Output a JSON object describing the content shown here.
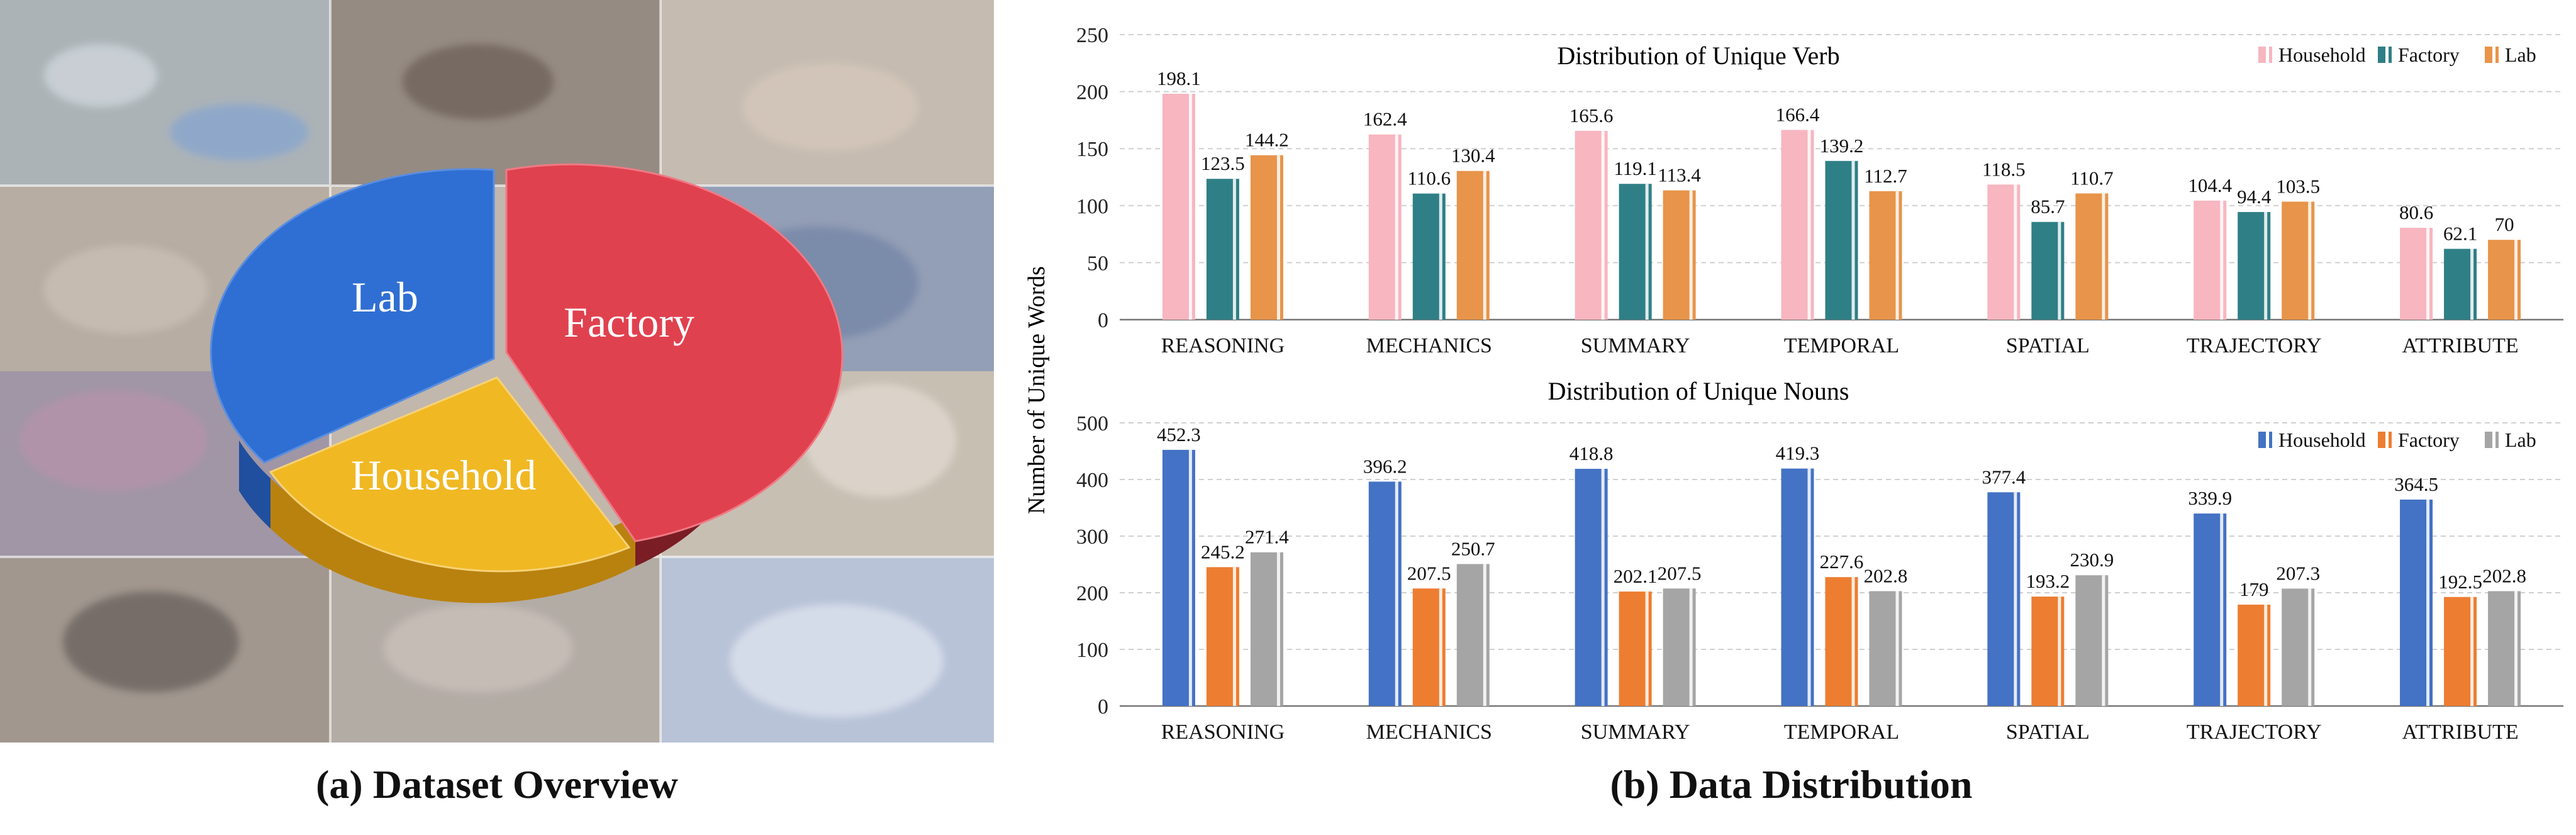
{
  "overview": {
    "caption": "(a) Dataset Overview",
    "slices": [
      {
        "label": "Lab",
        "color": "#2f6fd3"
      },
      {
        "label": "Factory",
        "color": "#e0414f"
      },
      {
        "label": "Household",
        "color": "#f0b823"
      }
    ]
  },
  "distribution": {
    "caption": "(b) Data Distribution",
    "ylabel": "Number of Unique Words"
  },
  "chart_data": [
    {
      "type": "bar",
      "title": "Distribution of Unique Verb",
      "categories": [
        "REASONING",
        "MECHANICS",
        "SUMMARY",
        "TEMPORAL",
        "SPATIAL",
        "TRAJECTORY",
        "ATTRIBUTE"
      ],
      "series": [
        {
          "name": "Household",
          "color": "#f7b6c0",
          "values": [
            198.1,
            162.4,
            165.6,
            166.4,
            118.5,
            104.4,
            80.6
          ],
          "labels": [
            "198.1",
            "162.4",
            "165.6",
            "166.4",
            "118.5",
            "104.4",
            "80.6"
          ]
        },
        {
          "name": "Factory",
          "color": "#2f7f86",
          "values": [
            123.5,
            110.6,
            119.1,
            139.2,
            85.7,
            94.4,
            62.1
          ],
          "labels": [
            "123.5",
            "110.6",
            "119.1",
            "139.2",
            "85.7",
            "94.4",
            "62.1"
          ]
        },
        {
          "name": "Lab",
          "color": "#e8944a",
          "values": [
            144.2,
            130.4,
            113.4,
            112.7,
            110.7,
            103.5,
            70
          ],
          "labels": [
            "144.2",
            "130.4",
            "113.4",
            "112.7",
            "110.7",
            "103.5",
            "70"
          ]
        }
      ],
      "ylim": [
        0,
        250
      ],
      "yticks": [
        "0",
        "50",
        "100",
        "150",
        "200",
        "250"
      ],
      "ylabel": "Number of Unique Words",
      "grid": true,
      "legend": "top-right"
    },
    {
      "type": "bar",
      "title": "Distribution of Unique Nouns",
      "categories": [
        "REASONING",
        "MECHANICS",
        "SUMMARY",
        "TEMPORAL",
        "SPATIAL",
        "TRAJECTORY",
        "ATTRIBUTE"
      ],
      "series": [
        {
          "name": "Household",
          "color": "#4472c4",
          "values": [
            452.3,
            396.2,
            418.8,
            419.3,
            377.4,
            339.9,
            364.5
          ],
          "labels": [
            "452.3",
            "396.2",
            "418.8",
            "419.3",
            "377.4",
            "339.9",
            "364.5"
          ]
        },
        {
          "name": "Factory",
          "color": "#ed7d31",
          "values": [
            245.2,
            207.5,
            202.1,
            227.6,
            193.2,
            179,
            192.5
          ],
          "labels": [
            "245.2",
            "207.5",
            "202.1",
            "227.6",
            "193.2",
            "179",
            "192.5"
          ]
        },
        {
          "name": "Lab",
          "color": "#a5a5a5",
          "values": [
            271.4,
            250.7,
            207.5,
            202.8,
            230.9,
            207.3,
            202.8
          ],
          "labels": [
            "271.4",
            "250.7",
            "207.5",
            "202.8",
            "230.9",
            "207.3",
            "202.8"
          ]
        }
      ],
      "ylim": [
        0,
        500
      ],
      "yticks": [
        "0",
        "100",
        "200",
        "300",
        "400",
        "500"
      ],
      "grid": true,
      "legend": "top-right"
    }
  ]
}
